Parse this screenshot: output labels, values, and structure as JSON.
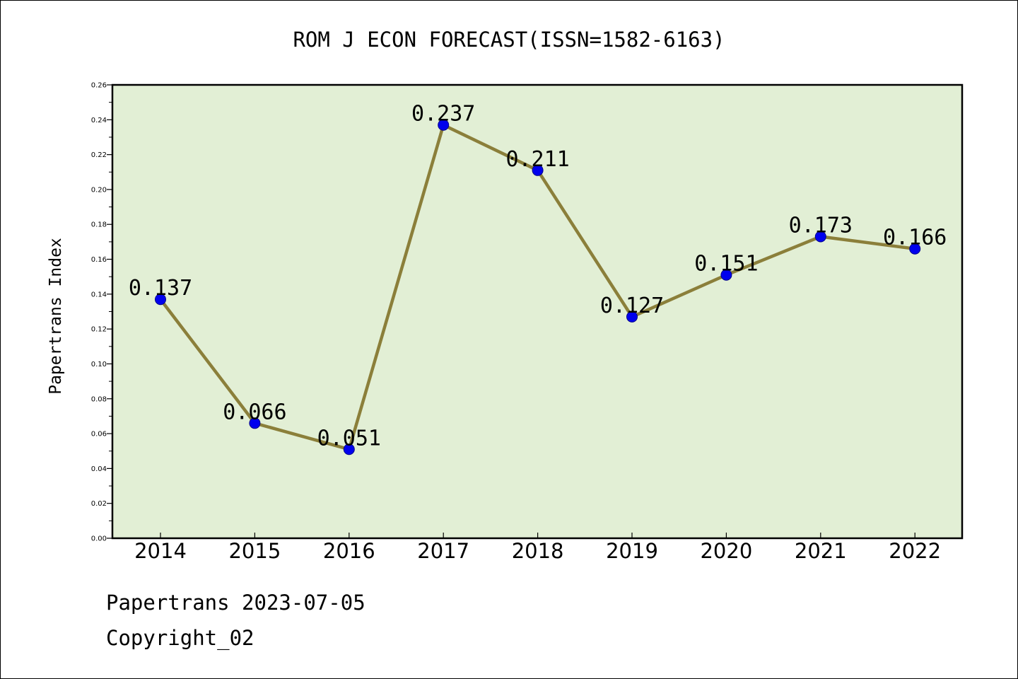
{
  "chart_data": {
    "type": "line",
    "title": "ROM J ECON FORECAST(ISSN=1582-6163)",
    "xlabel": "",
    "ylabel": "Papertrans Index",
    "categories": [
      "2014",
      "2015",
      "2016",
      "2017",
      "2018",
      "2019",
      "2020",
      "2021",
      "2022"
    ],
    "series": [
      {
        "values": [
          0.137,
          0.066,
          0.051,
          0.237,
          0.211,
          0.127,
          0.151,
          0.173,
          0.166
        ],
        "data_labels": [
          "0.137",
          "0.066",
          "0.051",
          "0.237",
          "0.211",
          "0.127",
          "0.151",
          "0.173",
          "0.166"
        ]
      }
    ],
    "ylim": [
      0,
      0.26
    ],
    "yticks": [
      "0.00",
      "0.02",
      "0.04",
      "0.06",
      "0.08",
      "0.10",
      "0.12",
      "0.14",
      "0.16",
      "0.18",
      "0.20",
      "0.22",
      "0.24",
      "0.26"
    ],
    "grid": false,
    "legend": "none",
    "colors": {
      "plot_background": "#e2efd5",
      "line": "#8b7f3a",
      "marker": "#0000ee",
      "marker_edge": "#00008b"
    }
  },
  "footer": {
    "line1": "Papertrans 2023-07-05",
    "line2": "Copyright_02"
  }
}
